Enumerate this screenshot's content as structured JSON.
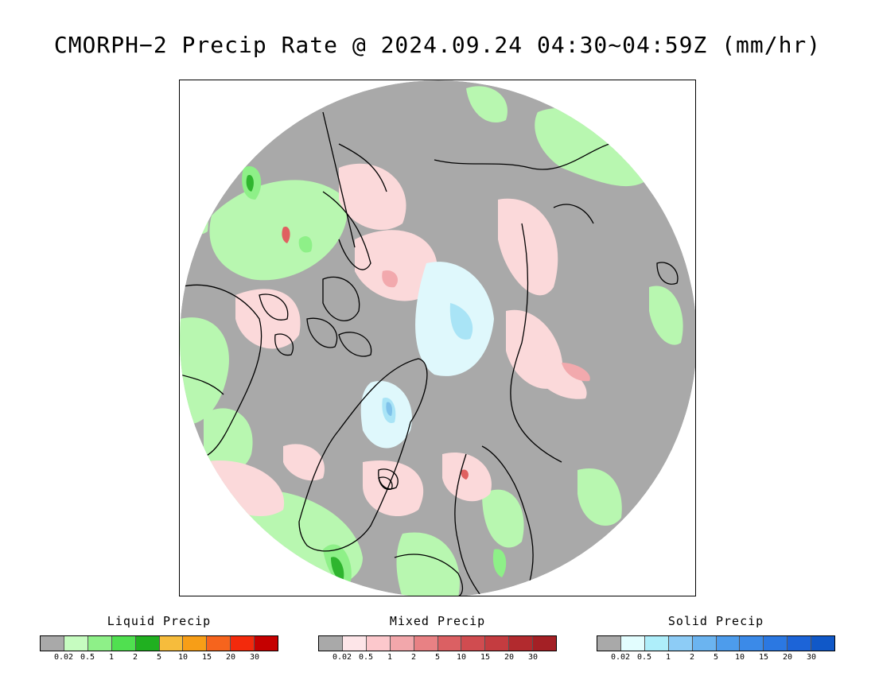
{
  "title": "CMORPH−2 Precip Rate @ 2024.09.24 04:30~04:59Z (mm/hr)",
  "map": {
    "projection": "north-polar-stereographic",
    "colors": {
      "no_precip": "#a9a9a9",
      "liquid_light": "#b8f7b0",
      "liquid_med": "#8ef088",
      "liquid_heavy": "#2fb52f",
      "mixed_light": "#fbd9da",
      "mixed_med": "#f2a9ad",
      "mixed_heavy": "#e06060",
      "solid_light": "#dff8fc",
      "solid_med": "#a9e4f6",
      "solid_heavy": "#7fc2ea",
      "coastline": "#000000"
    }
  },
  "legends": [
    {
      "title": "Liquid Precip",
      "colors": [
        "#a9a9a9",
        "#c6fcc0",
        "#8ef088",
        "#50e050",
        "#20b020",
        "#f6bc3c",
        "#f79e17",
        "#f6641d",
        "#f32a0c",
        "#c50000"
      ],
      "ticks": [
        "0.02",
        "0.5",
        "1",
        "2",
        "5",
        "10",
        "15",
        "20",
        "30"
      ]
    },
    {
      "title": "Mixed Precip",
      "colors": [
        "#a9a9a9",
        "#fde5e8",
        "#fcc8cc",
        "#f2a7ab",
        "#e88184",
        "#db6063",
        "#d04c50",
        "#c43c40",
        "#b22a2e",
        "#a42025"
      ],
      "ticks": [
        "0.02",
        "0.5",
        "1",
        "2",
        "5",
        "10",
        "15",
        "20",
        "30"
      ]
    },
    {
      "title": "Solid Precip",
      "colors": [
        "#a9a9a9",
        "#e2fdfe",
        "#aeeefa",
        "#8dccf6",
        "#6bb4f0",
        "#4d9cec",
        "#3b8ae8",
        "#2b78e2",
        "#1c64d8",
        "#1058c8"
      ],
      "ticks": [
        "0.02",
        "0.5",
        "1",
        "2",
        "5",
        "10",
        "15",
        "20",
        "30"
      ]
    }
  ]
}
